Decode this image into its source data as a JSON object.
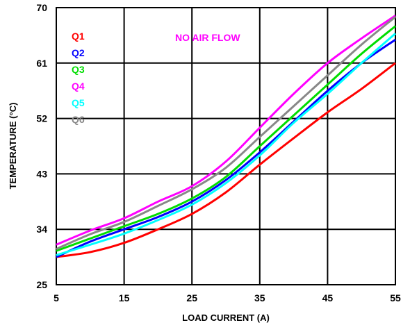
{
  "chart_data": {
    "type": "line",
    "title": "",
    "annotation": "NO AIR FLOW",
    "annotation_color": "#ff00ff",
    "xlabel": "LOAD CURRENT (A)",
    "ylabel": "TEMPERATURE (°C)",
    "xlim": [
      5,
      55
    ],
    "ylim": [
      25,
      70
    ],
    "xticks": [
      5,
      15,
      25,
      35,
      45,
      55
    ],
    "yticks": [
      25,
      34,
      43,
      52,
      61,
      70
    ],
    "grid": true,
    "legend_position": "top-left",
    "series": [
      {
        "name": "Q1",
        "color": "#ff0000",
        "x": [
          5,
          10,
          15,
          20,
          25,
          30,
          35,
          40,
          45,
          50,
          55
        ],
        "y": [
          29.5,
          30.3,
          31.8,
          34.0,
          36.5,
          40.0,
          44.5,
          48.8,
          53.0,
          56.8,
          61.0
        ]
      },
      {
        "name": "Q2",
        "color": "#0000ff",
        "x": [
          5,
          10,
          15,
          20,
          25,
          30,
          35,
          40,
          45,
          50,
          55
        ],
        "y": [
          29.5,
          32.0,
          34.0,
          36.0,
          38.5,
          42.0,
          46.5,
          51.5,
          56.5,
          61.0,
          64.8
        ]
      },
      {
        "name": "Q3",
        "color": "#00dd00",
        "x": [
          5,
          10,
          15,
          20,
          25,
          30,
          35,
          40,
          45,
          50,
          55
        ],
        "y": [
          30.5,
          32.5,
          34.5,
          36.5,
          39.0,
          42.5,
          47.5,
          52.5,
          57.5,
          62.5,
          67.0
        ]
      },
      {
        "name": "Q4",
        "color": "#ff00ff",
        "x": [
          5,
          10,
          15,
          20,
          25,
          30,
          35,
          40,
          45,
          50,
          55
        ],
        "y": [
          31.5,
          33.8,
          35.8,
          38.5,
          41.0,
          45.0,
          50.5,
          56.0,
          61.0,
          65.0,
          68.7
        ]
      },
      {
        "name": "Q5",
        "color": "#00ffff",
        "x": [
          5,
          10,
          15,
          20,
          25,
          30,
          35,
          40,
          45,
          50,
          55
        ],
        "y": [
          29.8,
          31.5,
          33.3,
          35.5,
          38.0,
          41.5,
          46.0,
          51.3,
          56.0,
          61.0,
          65.8
        ]
      },
      {
        "name": "Q6",
        "color": "#888888",
        "x": [
          5,
          10,
          15,
          20,
          25,
          30,
          35,
          40,
          45,
          50,
          55
        ],
        "y": [
          30.8,
          33.2,
          35.2,
          37.8,
          40.5,
          44.0,
          49.0,
          54.0,
          59.0,
          64.0,
          68.5
        ]
      }
    ]
  }
}
